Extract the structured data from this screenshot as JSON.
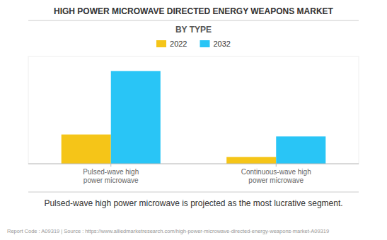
{
  "chart_data": {
    "type": "bar",
    "title": "HIGH POWER MICROWAVE DIRECTED ENERGY WEAPONS MARKET",
    "subtitle": "BY TYPE",
    "categories": [
      "Pulsed-wave high\npower microwave",
      "Continuous-wave high\npower microwave"
    ],
    "series": [
      {
        "name": "2022",
        "color": "#F5C518",
        "values": [
          3.0,
          0.7
        ]
      },
      {
        "name": "2032",
        "color": "#29C5F6",
        "values": [
          9.5,
          2.8
        ]
      }
    ],
    "annotation": "Pulsed-wave high power microwave is projected as the most lucrative segment.",
    "footer": "Report Code : A09319  |  Source : https://www.alliedmarketresearch.com/high-power-microwave-directed-energy-weapons-market-A09319",
    "ylim": [
      0,
      11
    ],
    "grid": false,
    "legend": "top",
    "tick_labels": "x"
  }
}
